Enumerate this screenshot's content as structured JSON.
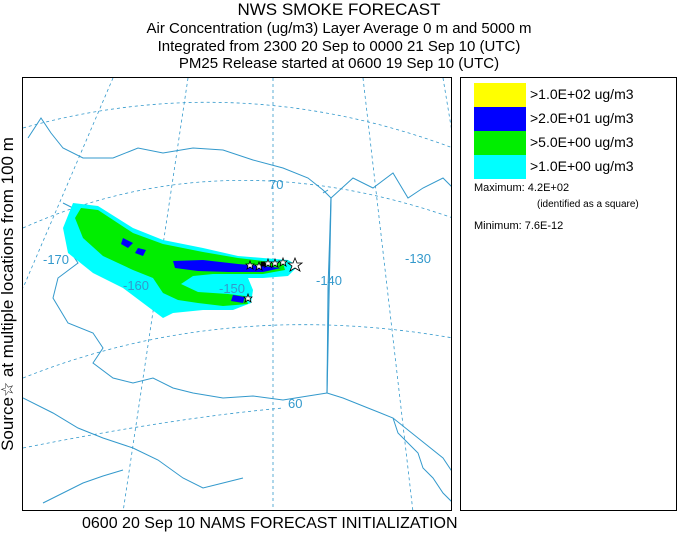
{
  "title": {
    "line1": "NWS SMOKE FORECAST",
    "line2": "Air Concentration (ug/m3) Layer Average     0 m and  5000 m",
    "line3": "Integrated from 2300 20 Sep to 0000 21 Sep 10 (UTC)",
    "line4": "PM25 Release started at 0600 19 Sep 10 (UTC)"
  },
  "side_label": "Source☆    at multiple locations    from   100 m",
  "legend": {
    "items": [
      {
        "label": ">1.0E+02 ug/m3",
        "color": "#ffff00"
      },
      {
        "label": ">2.0E+01 ug/m3",
        "color": "#0000ff"
      },
      {
        "label": ">5.0E+00 ug/m3",
        "color": "#00ee00"
      },
      {
        "label": ">1.0E+00 ug/m3",
        "color": "#00ffff"
      }
    ],
    "maximum": "Maximum: 4.2E+02",
    "max_note": "(identified as a square)",
    "minimum": "Minimum: 7.6E-12"
  },
  "map": {
    "grid_labels": {
      "lon_170": "-170",
      "lon_160": "-160",
      "lon_150": "-150",
      "lon_140": "-140",
      "lon_130": "-130",
      "lat_70": "70",
      "lat_60": "60"
    },
    "grid_color": "#3399cc",
    "coast_color": "#3399cc"
  },
  "footer": "0600 20 Sep 10 NAMS FORECAST INITIALIZATION"
}
